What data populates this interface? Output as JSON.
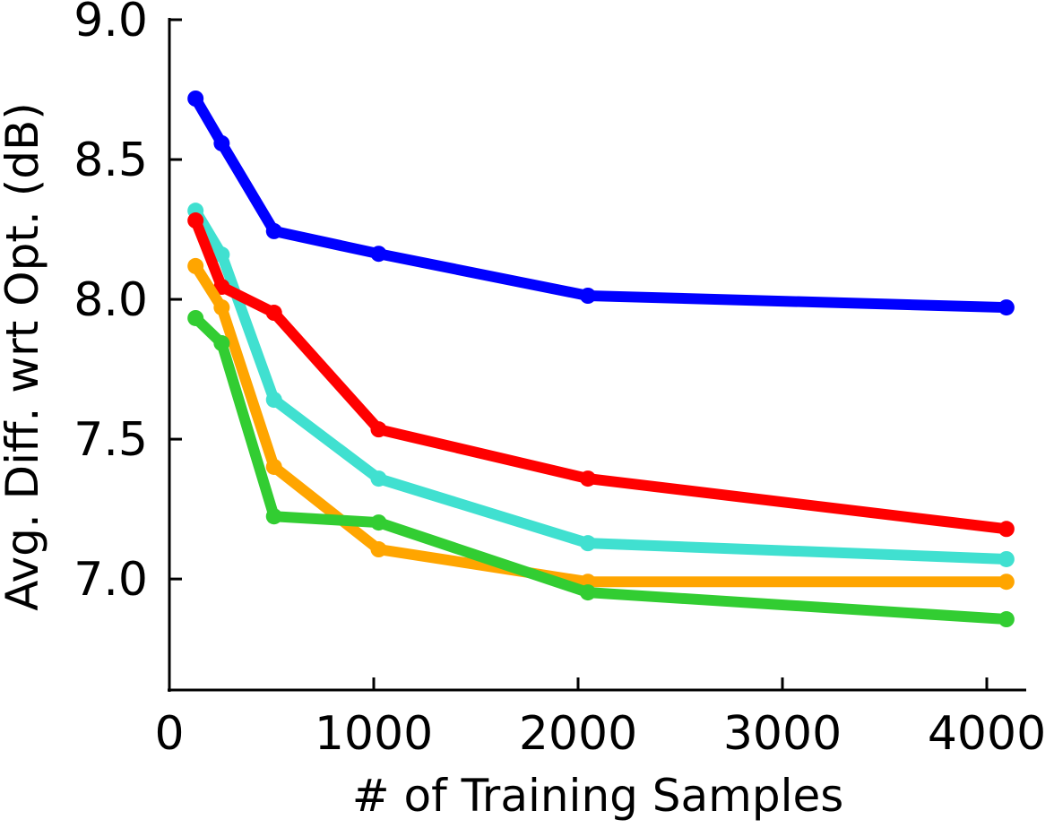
{
  "chart_data": {
    "type": "line",
    "xlabel": "# of Training Samples",
    "ylabel": "Avg. Diff. wrt Opt. (dB)",
    "x": [
      128,
      256,
      512,
      1024,
      2048,
      4096
    ],
    "series": [
      {
        "color": "#0000ff",
        "values": [
          8.718,
          8.558,
          8.244,
          8.163,
          8.013,
          7.971
        ]
      },
      {
        "color": "#40e0d0",
        "values": [
          8.317,
          8.16,
          7.641,
          7.359,
          7.128,
          7.071
        ]
      },
      {
        "color": "#ff0000",
        "values": [
          8.282,
          8.045,
          7.952,
          7.535,
          7.359,
          7.179
        ]
      },
      {
        "color": "#ffa500",
        "values": [
          8.119,
          7.971,
          7.401,
          7.106,
          6.99,
          6.99
        ]
      },
      {
        "color": "#32cd32",
        "values": [
          7.933,
          7.843,
          7.224,
          7.202,
          6.952,
          6.856
        ]
      }
    ],
    "xlim": [
      0,
      4193
    ],
    "ylim": [
      6.603,
      9.0
    ],
    "xticks": [
      0,
      1000,
      2000,
      3000,
      4000
    ],
    "yticks": [
      {
        "value": 7.0,
        "label": "7.0"
      },
      7.5,
      {
        "value": 8.0,
        "label": "8.0"
      },
      8.5,
      {
        "value": 9.0,
        "label": "9.0"
      }
    ]
  }
}
